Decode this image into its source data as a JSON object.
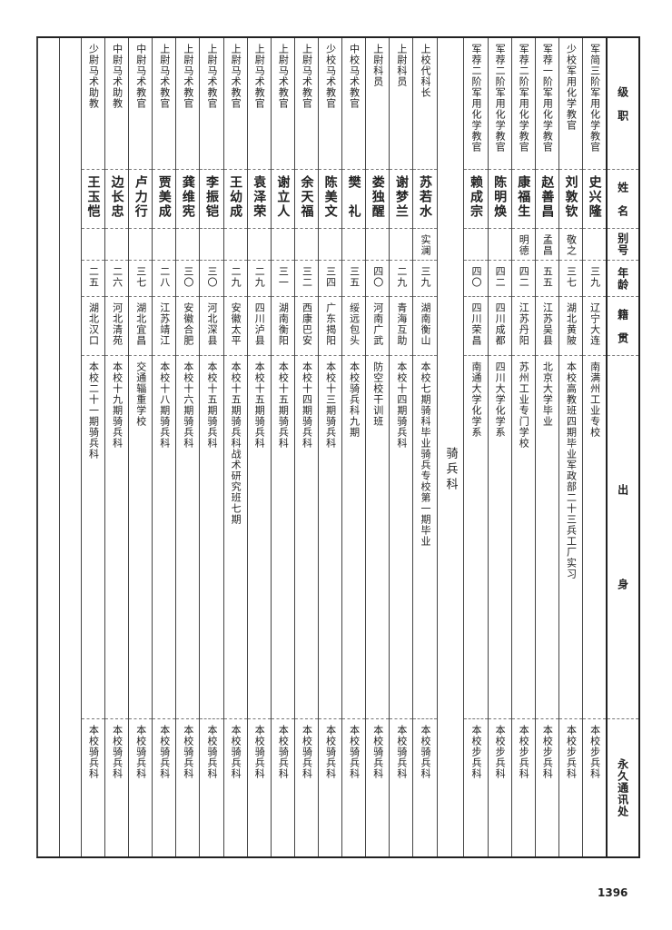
{
  "headers": [
    "级　职",
    "姓　名",
    "别号",
    "年龄",
    "籍　贯",
    "出　　　　　　　身",
    "永久通讯处"
  ],
  "section_label": "骑 兵 科",
  "chem_rows": [
    {
      "rank": "军简三阶军用化学教官",
      "name": "史兴隆",
      "alias": "",
      "age": "三九",
      "native": "辽宁大连",
      "background": "南满州工业专校",
      "address": "本校步兵科"
    },
    {
      "rank": "少校军用化学教官",
      "name": "刘敦钦",
      "alias": "敬之",
      "age": "三七",
      "native": "湖北黄陂",
      "background": "本校高教班四期毕业军政部二十三兵工厂实习",
      "address": "本校步兵科"
    },
    {
      "rank": "军荐一阶军用化学教官",
      "name": "赵善昌",
      "alias": "孟昌",
      "age": "五五",
      "native": "江苏吴县",
      "background": "北京大学毕业",
      "address": "本校步兵科"
    },
    {
      "rank": "军荐二阶军用化学教官",
      "name": "康福生",
      "alias": "明德",
      "age": "四二",
      "native": "江苏丹阳",
      "background": "苏州工业专门学校",
      "address": "本校步兵科"
    },
    {
      "rank": "军荐二阶军用化学教官",
      "name": "陈明焕",
      "alias": "",
      "age": "四二",
      "native": "四川成都",
      "background": "四川大学化学系",
      "address": "本校步兵科"
    },
    {
      "rank": "军荐二阶军用化学教官",
      "name": "赖成宗",
      "alias": "",
      "age": "四〇",
      "native": "四川荣昌",
      "background": "南通大学化学系",
      "address": "本校步兵科"
    }
  ],
  "cav_rows": [
    {
      "rank": "上校代科长",
      "name": "苏若水",
      "alias": "实澜",
      "age": "三九",
      "native": "湖南衡山",
      "background": "本校七期骑科毕业骑兵专校第一期毕业",
      "address": "本校骑兵科"
    },
    {
      "rank": "上尉科员",
      "name": "谢梦兰",
      "alias": "",
      "age": "二九",
      "native": "青海互助",
      "background": "本校十四期骑兵科",
      "address": "本校骑兵科"
    },
    {
      "rank": "上尉科员",
      "name": "娄独醒",
      "alias": "",
      "age": "四〇",
      "native": "河南广武",
      "background": "防空校干训班",
      "address": "本校骑兵科"
    },
    {
      "rank": "中校马术教官",
      "name": "樊　礼",
      "alias": "",
      "age": "三五",
      "native": "绥远包头",
      "background": "本校骑兵科九期",
      "address": "本校骑兵科"
    },
    {
      "rank": "少校马术教官",
      "name": "陈美文",
      "alias": "",
      "age": "三四",
      "native": "广东揭阳",
      "background": "本校十三期骑兵科",
      "address": "本校骑兵科"
    },
    {
      "rank": "上尉马术教官",
      "name": "余天福",
      "alias": "",
      "age": "三二",
      "native": "西康巴安",
      "background": "本校十四期骑兵科",
      "address": "本校骑兵科"
    },
    {
      "rank": "上尉马术教官",
      "name": "谢立人",
      "alias": "",
      "age": "三一",
      "native": "湖南衡阳",
      "background": "本校十五期骑兵科",
      "address": "本校骑兵科"
    },
    {
      "rank": "上尉马术教官",
      "name": "袁泽荣",
      "alias": "",
      "age": "二九",
      "native": "四川泸县",
      "background": "本校十五期骑兵科",
      "address": "本校骑兵科"
    },
    {
      "rank": "上尉马术教官",
      "name": "王幼成",
      "alias": "",
      "age": "二九",
      "native": "安徽太平",
      "background": "本校十五期骑兵科战术研究班七期",
      "address": "本校骑兵科"
    },
    {
      "rank": "上尉马术教官",
      "name": "李振铠",
      "alias": "",
      "age": "三〇",
      "native": "河北深县",
      "background": "本校十五期骑兵科",
      "address": "本校骑兵科"
    },
    {
      "rank": "上尉马术教官",
      "name": "龚维宪",
      "alias": "",
      "age": "三〇",
      "native": "安徽合肥",
      "background": "本校十六期骑兵科",
      "address": "本校骑兵科"
    },
    {
      "rank": "上尉马术教官",
      "name": "贾美成",
      "alias": "",
      "age": "二八",
      "native": "江苏靖江",
      "background": "本校十八期骑兵科",
      "address": "本校骑兵科"
    },
    {
      "rank": "中尉马术教官",
      "name": "卢力行",
      "alias": "",
      "age": "三七",
      "native": "湖北宜昌",
      "background": "交通辎重学校",
      "address": "本校骑兵科"
    },
    {
      "rank": "中尉马术助教",
      "name": "边长忠",
      "alias": "",
      "age": "二六",
      "native": "河北清苑",
      "background": "本校十九期骑兵科",
      "address": "本校骑兵科"
    },
    {
      "rank": "少尉马术助教",
      "name": "王玉恺",
      "alias": "",
      "age": "二五",
      "native": "湖北汉口",
      "background": "本校二十一期骑兵科",
      "address": "本校骑兵科"
    }
  ],
  "page_number": "1396"
}
